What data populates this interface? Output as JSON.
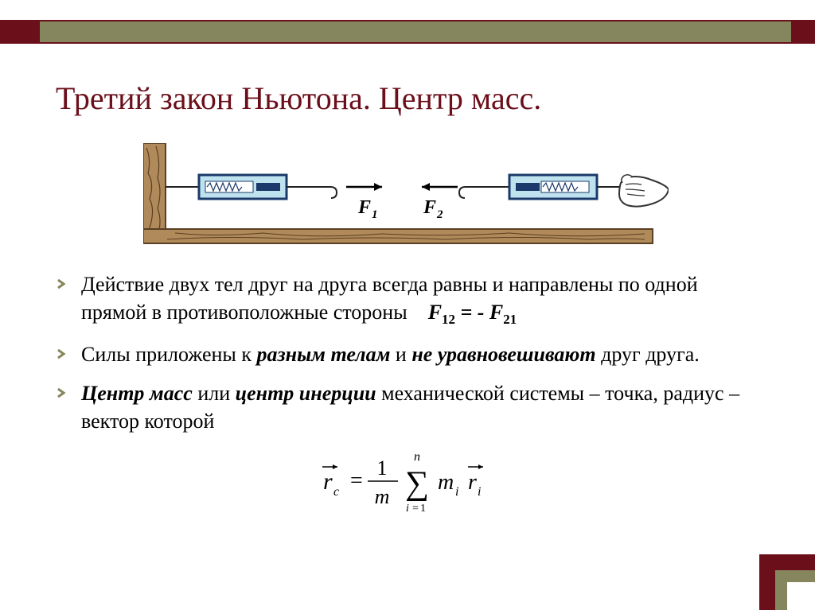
{
  "title": "Третий закон Ньютона. Центр масс.",
  "colors": {
    "accent_dark": "#6b0f1a",
    "accent_olive": "#86865e",
    "text": "#000000",
    "background": "#ffffff",
    "diagram_wood": "#b08a5a",
    "diagram_wood_line": "#5a3f22",
    "diagram_device_fill": "#bfe2ef",
    "diagram_device_stroke": "#1b3a6b",
    "diagram_line": "#222222",
    "hand_fill": "#ffffff",
    "hand_stroke": "#333333"
  },
  "diagram": {
    "label_f1": "F",
    "label_f1_sub": "1",
    "label_f2": "F",
    "label_f2_sub": "2"
  },
  "bullets": [
    {
      "html": "Действие двух тел друг на друга всегда равны и направлены по одной прямой в противоположные стороны&nbsp;&nbsp;&nbsp;&nbsp;<span class=\"inline-formula\"><i>F</i><span class=\"sub\">12</span> = - <i>F</i><span class=\"sub\">21</span></span>"
    },
    {
      "html": "Силы приложены к <span class=\"ib\">разным телам</span> и <span class=\"ib\">не уравновешивают</span> друг друга."
    },
    {
      "html": "<span class=\"ib\">Центр масс</span> или <span class=\"ib\">центр инерции</span> механической системы – точка, радиус – вектор которой"
    }
  ],
  "formula": {
    "r": "r",
    "r_sub": "c",
    "one": "1",
    "m_denom": "m",
    "sum_lower_var": "i",
    "sum_lower_eq": "=",
    "sum_lower_val": "1",
    "sum_upper": "n",
    "mi": "m",
    "mi_sub": "i",
    "ri": "r",
    "ri_sub": "i"
  }
}
